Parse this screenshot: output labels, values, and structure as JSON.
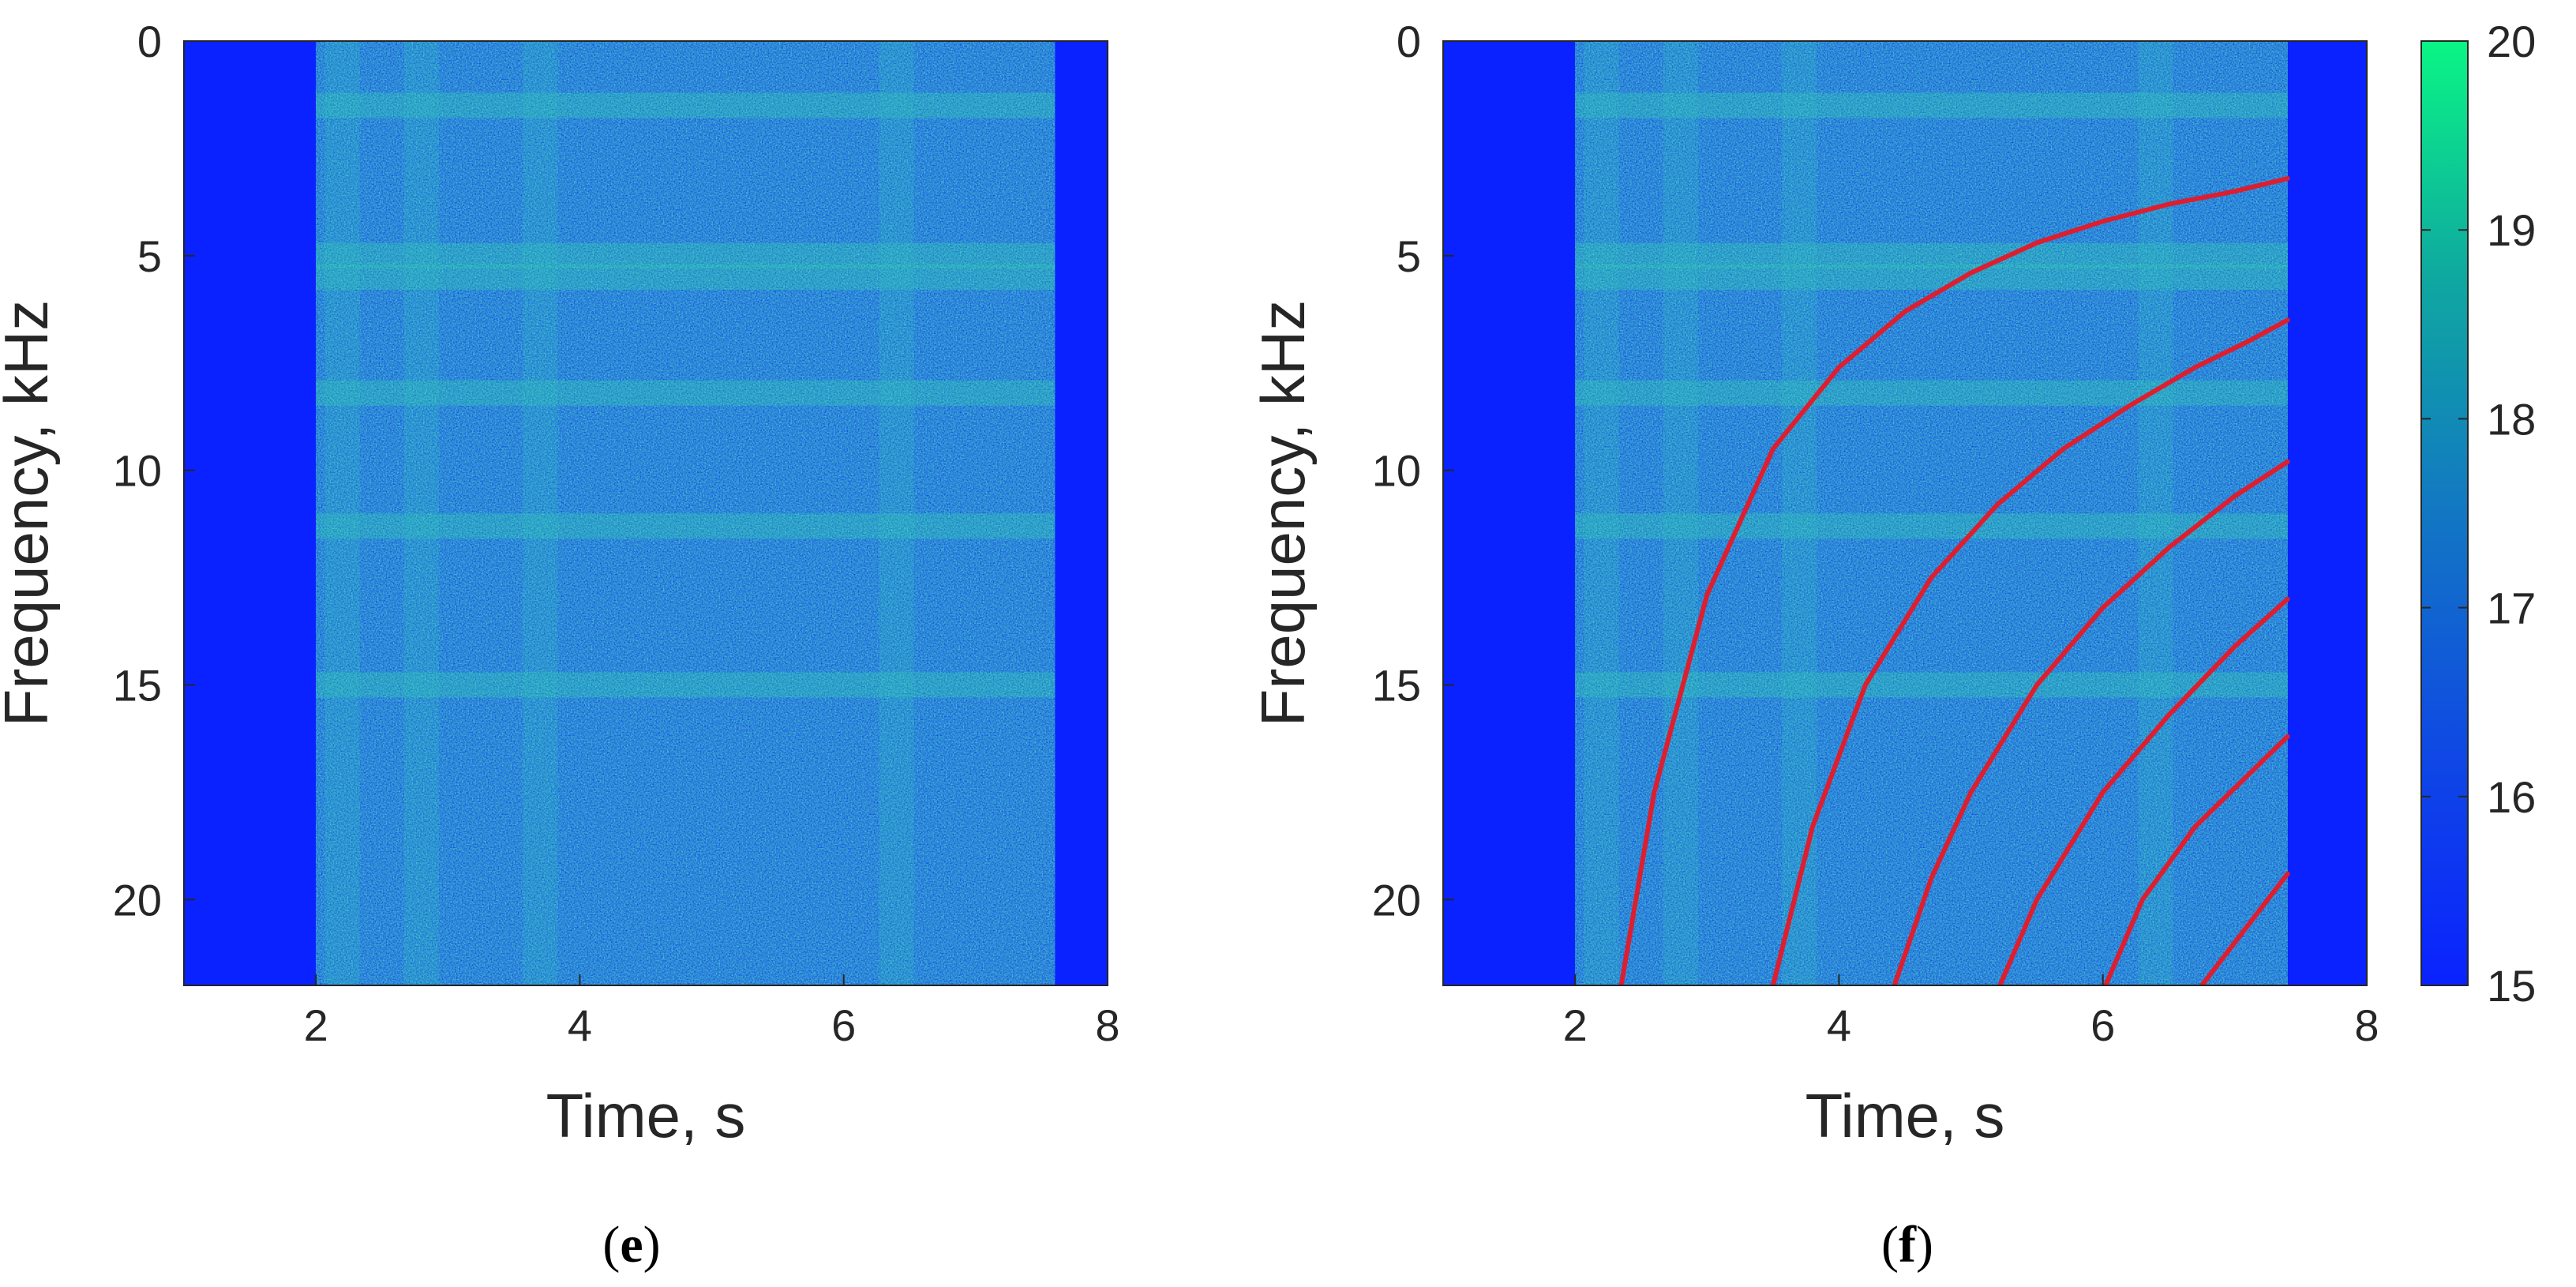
{
  "chart_data": [
    {
      "type": "heatmap",
      "caption": "e",
      "xlabel": "Time, s",
      "ylabel": "Frequency, kHz",
      "xlim": [
        1,
        8
      ],
      "ylim": [
        0,
        22
      ],
      "y_reversed": true,
      "xticks": [
        2,
        4,
        6,
        8
      ],
      "yticks": [
        0,
        5,
        10,
        15,
        20
      ],
      "color_range": [
        15,
        20
      ],
      "signal_time_range_s": [
        2.0,
        7.6
      ],
      "bright_bands_khz": [
        1.5,
        5.0,
        5.5,
        8.2,
        11.3,
        15.0
      ],
      "bright_columns_s": [
        2.2,
        2.8,
        3.7,
        6.4
      ],
      "series": []
    },
    {
      "type": "heatmap",
      "caption": "f",
      "xlabel": "Time, s",
      "ylabel": "Frequency, kHz",
      "xlim": [
        1,
        8
      ],
      "ylim": [
        0,
        22
      ],
      "y_reversed": true,
      "xticks": [
        2,
        4,
        6,
        8
      ],
      "yticks": [
        0,
        5,
        10,
        15,
        20
      ],
      "color_range": [
        15,
        20
      ],
      "colorbar_ticks": [
        15,
        16,
        17,
        18,
        19,
        20
      ],
      "signal_time_range_s": [
        2.0,
        7.4
      ],
      "bright_bands_khz": [
        1.5,
        5.0,
        5.5,
        8.2,
        11.3,
        15.0
      ],
      "bright_columns_s": [
        2.2,
        2.8,
        3.7,
        6.4
      ],
      "overlay_color": "#dd1e2f",
      "series": [
        {
          "x": [
            2.35,
            2.6,
            3.0,
            3.5,
            4.0,
            4.5,
            5.0,
            5.5,
            6.0,
            6.5,
            7.0,
            7.4
          ],
          "y": [
            22.0,
            17.5,
            12.9,
            9.5,
            7.6,
            6.3,
            5.4,
            4.7,
            4.2,
            3.8,
            3.5,
            3.2
          ]
        },
        {
          "x": [
            3.5,
            3.8,
            4.2,
            4.7,
            5.2,
            5.7,
            6.2,
            6.7,
            7.1,
            7.4
          ],
          "y": [
            22.0,
            18.3,
            15.0,
            12.5,
            10.8,
            9.5,
            8.5,
            7.6,
            7.0,
            6.5
          ]
        },
        {
          "x": [
            4.42,
            4.7,
            5.0,
            5.5,
            6.0,
            6.5,
            7.0,
            7.4
          ],
          "y": [
            22.0,
            19.5,
            17.5,
            15.0,
            13.2,
            11.8,
            10.6,
            9.8
          ]
        },
        {
          "x": [
            5.22,
            5.5,
            6.0,
            6.5,
            7.0,
            7.4
          ],
          "y": [
            22.0,
            20.0,
            17.5,
            15.7,
            14.1,
            13.0
          ]
        },
        {
          "x": [
            6.02,
            6.3,
            6.7,
            7.1,
            7.4
          ],
          "y": [
            22.0,
            20.0,
            18.3,
            17.1,
            16.2
          ]
        },
        {
          "x": [
            6.75,
            7.0,
            7.2,
            7.4
          ],
          "y": [
            22.0,
            21.0,
            20.2,
            19.4
          ]
        }
      ]
    }
  ]
}
